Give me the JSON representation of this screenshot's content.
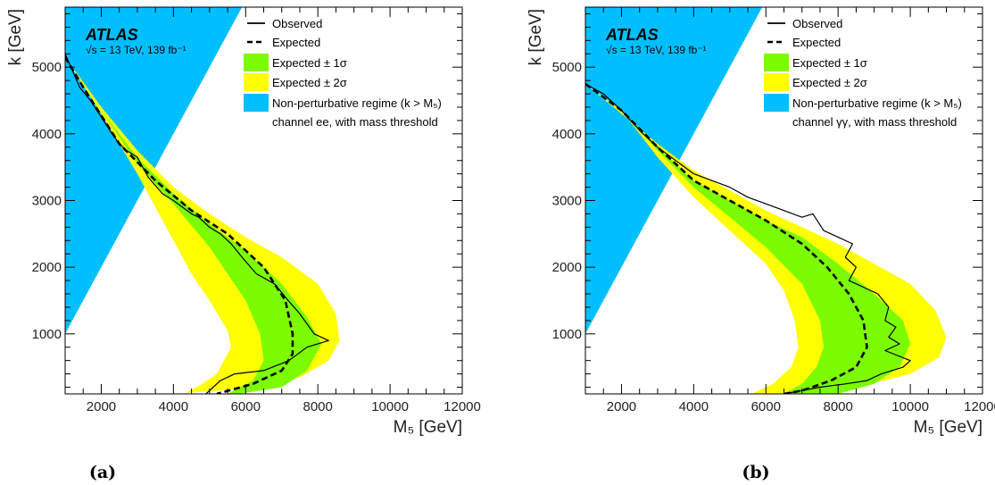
{
  "panels": [
    {
      "caption": "(a)",
      "atlas_label": "ATLAS",
      "energy_label": "√s = 13 TeV, 139 fb⁻¹",
      "legend_entries": {
        "observed": "Observed",
        "expected": "Expected",
        "band1": "Expected  ± 1σ",
        "band2": "Expected  ± 2σ",
        "nonpert": "Non-perturbative regime (k > M₅)",
        "channel": "channel ee, with mass threshold"
      }
    },
    {
      "caption": "(b)",
      "atlas_label": "ATLAS",
      "energy_label": "√s = 13 TeV, 139 fb⁻¹",
      "legend_entries": {
        "observed": "Observed",
        "expected": "Expected",
        "band1": "Expected  ± 1σ",
        "band2": "Expected  ± 2σ",
        "nonpert": "Non-perturbative regime (k > M₅)",
        "channel": "channel γγ, with mass threshold"
      }
    }
  ],
  "chart_data": [
    {
      "type": "area",
      "xlabel": "M₅ [GeV]",
      "ylabel": "k [GeV]",
      "xlim": [
        1000,
        12000
      ],
      "ylim": [
        100,
        5900
      ],
      "xticks": [
        2000,
        4000,
        6000,
        8000,
        10000,
        12000
      ],
      "yticks": [
        1000,
        2000,
        3000,
        4000,
        5000
      ],
      "colors": {
        "band2": "#ffff00",
        "band1": "#7cfc00",
        "nonpert": "#00bfff",
        "observed": "#000000",
        "expected": "#000000"
      },
      "series": [
        {
          "name": "Non-perturbative regime (k > M₅)",
          "points": [
            [
              1000,
              1000
            ],
            [
              1000,
              5900
            ],
            [
              5900,
              5900
            ]
          ]
        },
        {
          "name": "Expected  ± 2σ",
          "upper": [
            [
              1000,
              5150
            ],
            [
              2000,
              4400
            ],
            [
              3000,
              3750
            ],
            [
              4000,
              3200
            ],
            [
              5000,
              2800
            ],
            [
              6000,
              2450
            ],
            [
              7000,
              2150
            ],
            [
              8000,
              1750
            ],
            [
              8500,
              1300
            ],
            [
              8600,
              900
            ],
            [
              8300,
              600
            ],
            [
              7500,
              350
            ],
            [
              6000,
              180
            ],
            [
              4000,
              100
            ]
          ],
          "lower": [
            [
              1000,
              5150
            ],
            [
              2000,
              4300
            ],
            [
              3000,
              3400
            ],
            [
              3500,
              2900
            ],
            [
              4000,
              2400
            ],
            [
              4500,
              1900
            ],
            [
              5000,
              1500
            ],
            [
              5500,
              1050
            ],
            [
              5600,
              800
            ],
            [
              5200,
              400
            ],
            [
              4800,
              250
            ],
            [
              4300,
              100
            ]
          ]
        },
        {
          "name": "Expected  ± 1σ",
          "upper": [
            [
              1000,
              5150
            ],
            [
              2000,
              4350
            ],
            [
              3000,
              3650
            ],
            [
              4000,
              3100
            ],
            [
              5000,
              2650
            ],
            [
              6000,
              2250
            ],
            [
              7000,
              1750
            ],
            [
              7700,
              1250
            ],
            [
              8100,
              850
            ],
            [
              7700,
              450
            ],
            [
              7000,
              200
            ],
            [
              5800,
              100
            ]
          ],
          "lower": [
            [
              1000,
              5150
            ],
            [
              2000,
              4350
            ],
            [
              3000,
              3550
            ],
            [
              4000,
              2950
            ],
            [
              5000,
              2300
            ],
            [
              6000,
              1500
            ],
            [
              6400,
              1000
            ],
            [
              6500,
              600
            ],
            [
              6200,
              300
            ],
            [
              5500,
              100
            ]
          ]
        },
        {
          "name": "Expected",
          "points": [
            [
              1000,
              5150
            ],
            [
              1500,
              4700
            ],
            [
              2500,
              3850
            ],
            [
              3500,
              3300
            ],
            [
              4500,
              2850
            ],
            [
              5500,
              2500
            ],
            [
              6500,
              2000
            ],
            [
              7100,
              1500
            ],
            [
              7300,
              1000
            ],
            [
              7300,
              700
            ],
            [
              7000,
              450
            ],
            [
              6200,
              250
            ],
            [
              5200,
              100
            ]
          ]
        },
        {
          "name": "Observed",
          "points": [
            [
              1000,
              5200
            ],
            [
              1200,
              4950
            ],
            [
              1400,
              4700
            ],
            [
              1700,
              4500
            ],
            [
              2000,
              4250
            ],
            [
              2300,
              4000
            ],
            [
              2500,
              3850
            ],
            [
              2700,
              3750
            ],
            [
              3000,
              3650
            ],
            [
              3300,
              3350
            ],
            [
              3700,
              3100
            ],
            [
              4000,
              3000
            ],
            [
              4500,
              2800
            ],
            [
              4700,
              2750
            ],
            [
              5000,
              2600
            ],
            [
              5300,
              2500
            ],
            [
              5600,
              2350
            ],
            [
              5900,
              2150
            ],
            [
              6300,
              1900
            ],
            [
              6800,
              1750
            ],
            [
              7100,
              1550
            ],
            [
              7500,
              1300
            ],
            [
              7900,
              1000
            ],
            [
              8300,
              900
            ],
            [
              7700,
              800
            ],
            [
              7200,
              600
            ],
            [
              6500,
              450
            ],
            [
              5700,
              400
            ],
            [
              5300,
              300
            ],
            [
              4900,
              100
            ]
          ]
        }
      ]
    },
    {
      "type": "area",
      "xlabel": "M₅ [GeV]",
      "ylabel": "k [GeV]",
      "xlim": [
        1000,
        12000
      ],
      "ylim": [
        100,
        5900
      ],
      "xticks": [
        2000,
        4000,
        6000,
        8000,
        10000,
        12000
      ],
      "yticks": [
        1000,
        2000,
        3000,
        4000,
        5000
      ],
      "colors": {
        "band2": "#ffff00",
        "band1": "#7cfc00",
        "nonpert": "#00bfff",
        "observed": "#000000",
        "expected": "#000000"
      },
      "series": [
        {
          "name": "Non-perturbative regime (k > M₅)",
          "points": [
            [
              1000,
              1000
            ],
            [
              1000,
              5900
            ],
            [
              5900,
              5900
            ]
          ]
        },
        {
          "name": "Expected  ± 2σ",
          "upper": [
            [
              1000,
              4750
            ],
            [
              2000,
              4300
            ],
            [
              3000,
              3850
            ],
            [
              4000,
              3450
            ],
            [
              5000,
              3150
            ],
            [
              6000,
              2850
            ],
            [
              7000,
              2600
            ],
            [
              8000,
              2350
            ],
            [
              9000,
              2050
            ],
            [
              10000,
              1750
            ],
            [
              10700,
              1350
            ],
            [
              11000,
              950
            ],
            [
              10800,
              650
            ],
            [
              10000,
              400
            ],
            [
              8500,
              200
            ],
            [
              6500,
              100
            ]
          ],
          "lower": [
            [
              1000,
              4750
            ],
            [
              2000,
              4350
            ],
            [
              3000,
              3650
            ],
            [
              4000,
              3050
            ],
            [
              5000,
              2550
            ],
            [
              6000,
              2050
            ],
            [
              6500,
              1650
            ],
            [
              6800,
              1200
            ],
            [
              6900,
              800
            ],
            [
              6700,
              500
            ],
            [
              6200,
              250
            ],
            [
              5600,
              100
            ]
          ]
        },
        {
          "name": "Expected  ± 1σ",
          "upper": [
            [
              1000,
              4750
            ],
            [
              2000,
              4350
            ],
            [
              3000,
              3800
            ],
            [
              4000,
              3300
            ],
            [
              5000,
              3000
            ],
            [
              6000,
              2700
            ],
            [
              7000,
              2450
            ],
            [
              8000,
              2050
            ],
            [
              9000,
              1600
            ],
            [
              9800,
              1200
            ],
            [
              10000,
              850
            ],
            [
              9700,
              500
            ],
            [
              9000,
              250
            ],
            [
              8000,
              100
            ]
          ],
          "lower": [
            [
              1000,
              4750
            ],
            [
              2000,
              4350
            ],
            [
              3000,
              3750
            ],
            [
              4000,
              3200
            ],
            [
              5000,
              2750
            ],
            [
              6000,
              2300
            ],
            [
              7000,
              1750
            ],
            [
              7500,
              1200
            ],
            [
              7600,
              800
            ],
            [
              7400,
              500
            ],
            [
              7000,
              250
            ],
            [
              6500,
              100
            ]
          ]
        },
        {
          "name": "Expected",
          "points": [
            [
              1000,
              4750
            ],
            [
              2000,
              4350
            ],
            [
              3000,
              3800
            ],
            [
              4000,
              3300
            ],
            [
              5000,
              3000
            ],
            [
              6000,
              2700
            ],
            [
              7000,
              2350
            ],
            [
              7700,
              2000
            ],
            [
              8300,
              1600
            ],
            [
              8700,
              1200
            ],
            [
              8800,
              800
            ],
            [
              8500,
              500
            ],
            [
              7800,
              300
            ],
            [
              7000,
              150
            ],
            [
              6500,
              100
            ]
          ]
        },
        {
          "name": "Observed",
          "points": [
            [
              1000,
              4750
            ],
            [
              1500,
              4600
            ],
            [
              2000,
              4350
            ],
            [
              2500,
              4050
            ],
            [
              3000,
              3800
            ],
            [
              3500,
              3600
            ],
            [
              4000,
              3400
            ],
            [
              4500,
              3300
            ],
            [
              5000,
              3200
            ],
            [
              5500,
              3050
            ],
            [
              6000,
              2950
            ],
            [
              6500,
              2850
            ],
            [
              7000,
              2750
            ],
            [
              7300,
              2800
            ],
            [
              7600,
              2550
            ],
            [
              8000,
              2450
            ],
            [
              8400,
              2350
            ],
            [
              8200,
              2150
            ],
            [
              8500,
              2000
            ],
            [
              8300,
              1800
            ],
            [
              9100,
              1600
            ],
            [
              9400,
              1400
            ],
            [
              9300,
              1200
            ],
            [
              9600,
              1100
            ],
            [
              9400,
              950
            ],
            [
              9700,
              850
            ],
            [
              9300,
              750
            ],
            [
              10000,
              600
            ],
            [
              9800,
              500
            ],
            [
              9200,
              400
            ],
            [
              8800,
              300
            ],
            [
              8200,
              250
            ],
            [
              7500,
              200
            ],
            [
              6500,
              100
            ]
          ]
        }
      ]
    }
  ]
}
